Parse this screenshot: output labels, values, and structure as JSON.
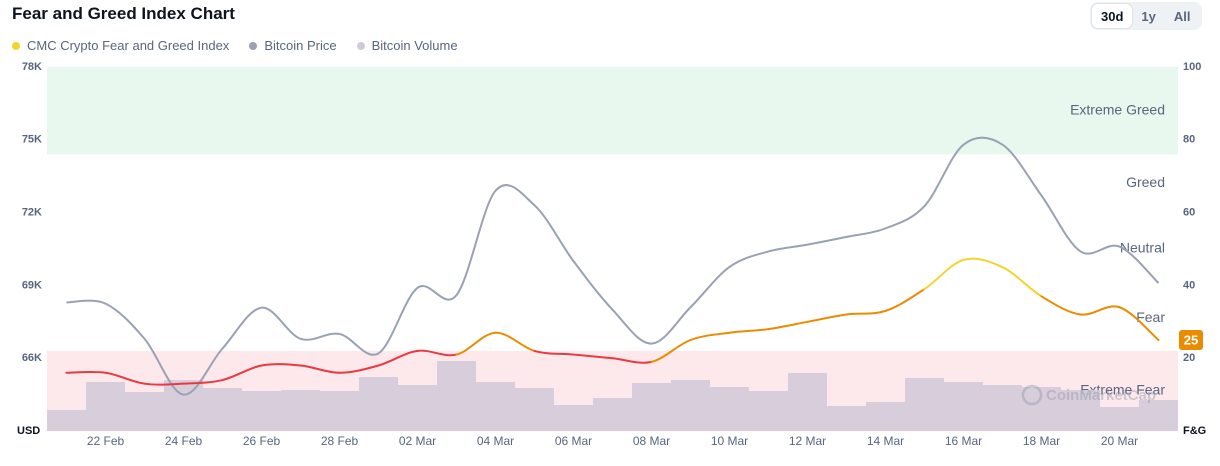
{
  "header": {
    "controls": [
      "30d",
      "1y",
      "All"
    ],
    "active_control": "30d"
  },
  "chart_data": {
    "type": "line",
    "title": "Fear and Greed Index Chart",
    "categories": [
      null,
      "22 Feb",
      null,
      "24 Feb",
      null,
      "26 Feb",
      null,
      "28 Feb",
      null,
      "02 Mar",
      null,
      "04 Mar",
      null,
      "06 Mar",
      null,
      "08 Mar",
      null,
      "10 Mar",
      null,
      "12 Mar",
      null,
      "14 Mar",
      null,
      "16 Mar",
      null,
      "18 Mar",
      null,
      "20 Mar",
      null
    ],
    "series": [
      {
        "name": "CMC Crypto Fear and Greed Index",
        "color": "#f3d42f",
        "axis": "y2",
        "values": [
          16,
          16,
          13,
          13,
          14,
          18,
          18,
          16,
          18,
          22,
          21,
          27,
          22,
          21,
          20,
          19,
          25,
          27,
          28,
          30,
          32,
          33,
          39,
          47,
          45,
          37,
          32,
          34,
          25
        ]
      },
      {
        "name": "Bitcoin Price",
        "color": "#9aa1b5",
        "axis": "y",
        "values": [
          68300,
          68250,
          66800,
          64500,
          66400,
          68080,
          66800,
          67000,
          66200,
          68900,
          68600,
          72900,
          72300,
          70000,
          68000,
          66600,
          68100,
          69760,
          70400,
          70680,
          71000,
          71350,
          72270,
          74800,
          74800,
          72700,
          70400,
          70600,
          69100
        ]
      },
      {
        "name": "Bitcoin Volume",
        "color": "#d3cad9",
        "type": "bar",
        "values": [
          21,
          49,
          39,
          51,
          43,
          40,
          41,
          40,
          54,
          46,
          70,
          49,
          43,
          26,
          33,
          48,
          51,
          44,
          40,
          58,
          25,
          29,
          53,
          49,
          46,
          44,
          41,
          24,
          31
        ]
      }
    ],
    "ylim": [
      63000,
      78000
    ],
    "yticks": [
      {
        "value": 66000,
        "label": "66K"
      },
      {
        "value": 69000,
        "label": "69K"
      },
      {
        "value": 72000,
        "label": "72K"
      },
      {
        "value": 75000,
        "label": "75K"
      },
      {
        "value": 78000,
        "label": "78K"
      }
    ],
    "y2lim": [
      0,
      100
    ],
    "y2ticks": [
      20,
      40,
      60,
      80,
      100
    ],
    "ylabel": "USD",
    "y2label": "F&G",
    "zones": [
      {
        "label": "Extreme Fear",
        "from": 0,
        "to": 22,
        "color": "#ea3943",
        "shaded": true,
        "fill": "#fde9eb"
      },
      {
        "label": "Fear",
        "from": 22,
        "to": 40,
        "color": "#ea8c00",
        "shaded": false
      },
      {
        "label": "Neutral",
        "from": 40,
        "to": 60,
        "color": "#f3d42f",
        "shaded": false
      },
      {
        "label": "Greed",
        "from": 60,
        "to": 76,
        "color": "#93d900",
        "shaded": false
      },
      {
        "label": "Extreme Greed",
        "from": 76,
        "to": 100,
        "color": "#16c784",
        "shaded": true,
        "fill": "#e8f8ef"
      }
    ],
    "watermark": "CoinMarketCap"
  }
}
